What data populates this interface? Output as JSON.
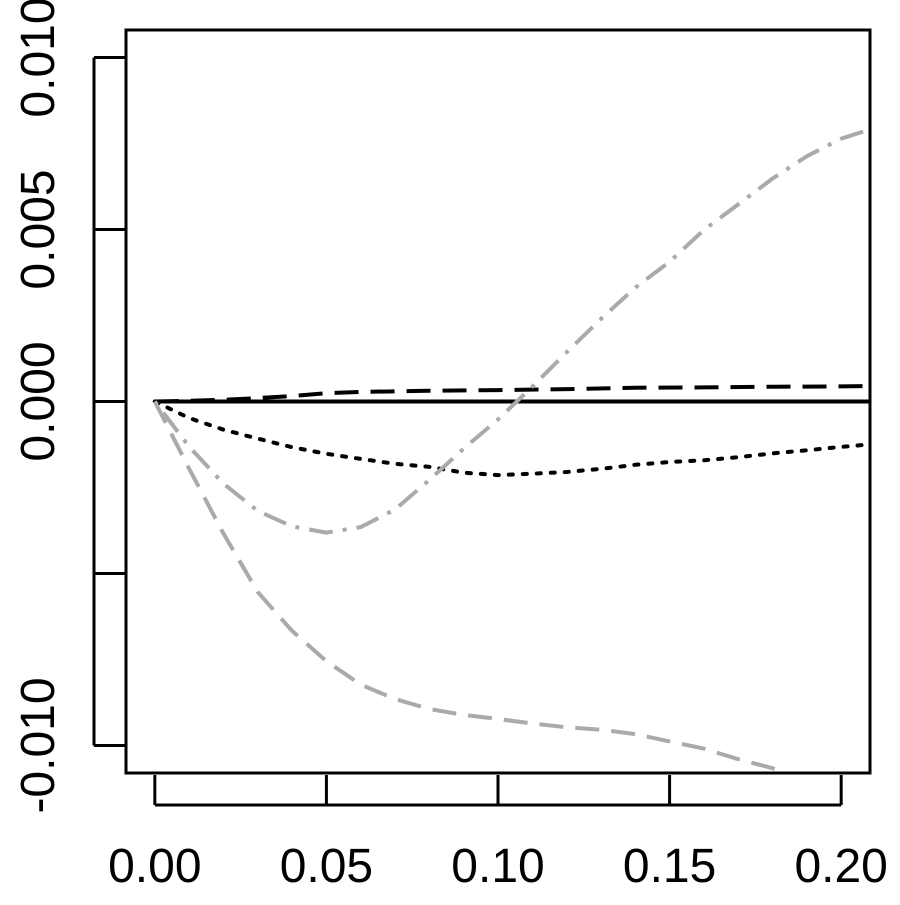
{
  "chart_data": {
    "type": "line",
    "title": "",
    "xlabel": "",
    "ylabel": "",
    "xlim": [
      -0.0084,
      0.2084
    ],
    "ylim": [
      -0.0108,
      0.0108
    ],
    "x_ticks": [
      0.0,
      0.05,
      0.1,
      0.15,
      0.2
    ],
    "x_tick_labels": [
      "0.00",
      "0.05",
      "0.10",
      "0.15",
      "0.20"
    ],
    "y_ticks": [
      -0.01,
      -0.005,
      0.0,
      0.005,
      0.01
    ],
    "y_tick_labels": [
      "-0.010",
      "",
      "0.000",
      "0.005",
      "0.010"
    ],
    "grid": false,
    "series": [
      {
        "color": "#000000",
        "dash": "solid",
        "x": [
          0.0,
          0.05,
          0.1,
          0.15,
          0.2,
          0.208
        ],
        "y": [
          0.0,
          0.0,
          0.0,
          0.0,
          0.0,
          0.0
        ]
      },
      {
        "color": "#000000",
        "dash": "dashed",
        "x": [
          0.0,
          0.01,
          0.02,
          0.03,
          0.04,
          0.05,
          0.06,
          0.08,
          0.1,
          0.12,
          0.14,
          0.16,
          0.18,
          0.2,
          0.208
        ],
        "y": [
          0.0,
          2e-05,
          5e-05,
          0.0001,
          0.00016,
          0.00024,
          0.00028,
          0.00031,
          0.00033,
          0.00036,
          0.0004,
          0.00041,
          0.00043,
          0.00044,
          0.00045
        ]
      },
      {
        "color": "#000000",
        "dash": "dotted",
        "x": [
          0.0,
          0.01,
          0.02,
          0.03,
          0.04,
          0.05,
          0.06,
          0.07,
          0.08,
          0.09,
          0.1,
          0.11,
          0.12,
          0.13,
          0.14,
          0.15,
          0.16,
          0.17,
          0.18,
          0.19,
          0.2,
          0.208
        ],
        "y": [
          0.0,
          -0.00048,
          -0.00082,
          -0.00108,
          -0.00133,
          -0.00152,
          -0.00167,
          -0.00181,
          -0.0019,
          -0.00207,
          -0.00214,
          -0.0021,
          -0.00205,
          -0.00196,
          -0.00184,
          -0.00176,
          -0.00171,
          -0.00162,
          -0.00151,
          -0.00142,
          -0.00132,
          -0.00125
        ]
      },
      {
        "color": "#aaaaaa",
        "dash": "dashdot",
        "x": [
          0.0,
          0.01,
          0.02,
          0.03,
          0.04,
          0.05,
          0.06,
          0.07,
          0.08,
          0.09,
          0.1,
          0.11,
          0.12,
          0.13,
          0.14,
          0.15,
          0.16,
          0.17,
          0.18,
          0.19,
          0.2,
          0.208
        ],
        "y": [
          0.0,
          -0.00131,
          -0.00239,
          -0.00318,
          -0.00363,
          -0.00381,
          -0.00365,
          -0.00314,
          -0.00228,
          -0.00137,
          -0.00052,
          0.00043,
          0.00143,
          0.0024,
          0.00331,
          0.00406,
          0.00499,
          0.00573,
          0.00648,
          0.00713,
          0.00764,
          0.0079
        ]
      },
      {
        "color": "#aaaaaa",
        "dash": "dashed",
        "x": [
          0.0,
          0.01,
          0.02,
          0.03,
          0.04,
          0.05,
          0.06,
          0.07,
          0.08,
          0.09,
          0.1,
          0.11,
          0.12,
          0.13,
          0.14,
          0.15,
          0.16,
          0.17,
          0.18,
          0.19,
          0.2,
          0.208
        ],
        "y": [
          0.0,
          -0.00195,
          -0.00384,
          -0.00554,
          -0.00667,
          -0.00755,
          -0.00823,
          -0.00865,
          -0.00894,
          -0.00911,
          -0.00923,
          -0.00936,
          -0.00947,
          -0.00954,
          -0.00967,
          -0.00988,
          -0.01009,
          -0.0104,
          -0.01066,
          -0.01104,
          -0.01148,
          -0.0118
        ]
      }
    ]
  }
}
